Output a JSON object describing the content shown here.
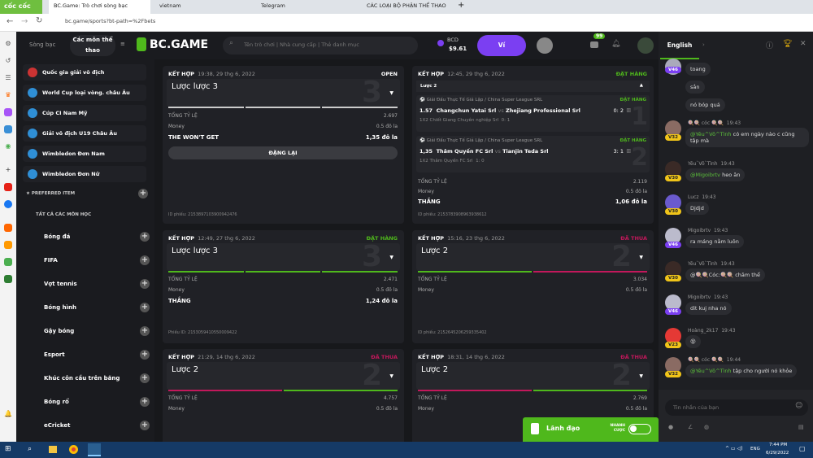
{
  "browser": {
    "brand": "cốc cốc",
    "tabs": [
      "BC.Game: Trò chơi sòng bạc",
      "vietnam",
      "Telegram",
      "CÁC LOẠI BỘ PHẬN THỂ THAO"
    ],
    "url": "bc.game/sports?bt-path=%2Fbets"
  },
  "header": {
    "casino": "Sòng bạc",
    "sports": "Các môn thể thao",
    "logo": "BC.GAME",
    "search_placeholder": "Tên trò chơi | Nhà cung cấp | Thẻ danh mục",
    "currency": "BCD",
    "balance": "$9.61",
    "wallet": "Ví",
    "mail_badge": "99"
  },
  "sidebar": {
    "leagues": [
      "Quốc gia giải vô địch",
      "World Cup loại vòng. châu Âu",
      "Cúp CI Nam Mỹ",
      "Giải vô địch U19 Châu Âu",
      "Wimbledon Đơn Nam",
      "Wimbledon Đơn Nữ"
    ],
    "preferred": "PREFERRED ITEM",
    "all": "TẤT CẢ CÁC MÔN HỌC",
    "sports": [
      "Bóng đá",
      "FIFA",
      "Vợt tennis",
      "Bóng hình",
      "Gậy bóng",
      "Esport",
      "Khúc côn cầu trên băng",
      "Bóng rổ",
      "eCricket"
    ]
  },
  "colors": {
    "green": "#4fb81c",
    "red": "#c2185b",
    "purple": "#7b3ff2"
  },
  "bets": [
    {
      "type": "KẾT HỢP",
      "time": "19:38, 29 thg 6, 2022",
      "status": "OPEN",
      "title": "Lược lược 3",
      "num": "3",
      "total_label": "TỔNG TỶ LỆ",
      "total": "2.697",
      "money_label": "Money",
      "money": "0.5 đô la",
      "result_label": "THE WON'T GET",
      "result": "1,35 đô la",
      "button": "ĐẶNG LẠI",
      "id": "ID phiếu: 2153897103900942476"
    },
    {
      "type": "KẾT HỢP",
      "time": "12:45, 29 thg 6, 2022",
      "status": "ĐẶT HÀNG",
      "title": "Lược 2",
      "total_label": "TỔNG TỶ LỆ",
      "total": "2.119",
      "money_label": "Money",
      "money": "0.5 đô la",
      "result_label": "THẮNG",
      "result": "1,06 đô la",
      "id": "ID phiếu: 2153783908963938612",
      "legs": [
        {
          "league": "Giải Đấu Thực Tế Giả Lập / China Super League SRL",
          "status": "ĐẶT HÀNG",
          "odds": "1.57",
          "home": "Changchun Yatai Srl",
          "away": "Zhejiang Professional Srl",
          "score": "0: 2",
          "pick": "1X2 Chiết Giang Chuyên nghiệp Srl",
          "pick_score": "0: 1",
          "num": "1"
        },
        {
          "league": "Giải Đấu Thực Tế Giả Lập / China Super League SRL",
          "status": "ĐẶT HÀNG",
          "odds": "1,35",
          "home": "Thâm Quyến FC Srl",
          "away": "Tianjin Teda Srl",
          "score": "3: 1",
          "pick": "1X2 Thâm Quyến FC Srl",
          "pick_score": "1: 0",
          "num": "2"
        }
      ]
    },
    {
      "type": "KẾT HỢP",
      "time": "12:49, 27 thg 6, 2022",
      "status": "ĐẶT HÀNG",
      "title": "Lược lược 3",
      "num": "3",
      "total_label": "TỔNG TỶ LỆ",
      "total": "2.471",
      "money_label": "Money",
      "money": "0.5 đô la",
      "result_label": "THẮNG",
      "result": "1,24 đô la",
      "id": "Phiếu ID: 2153059410550009422"
    },
    {
      "type": "KẾT HỢP",
      "time": "15:16, 23 thg 6, 2022",
      "status": "ĐÃ THUA",
      "title": "Lược 2",
      "num": "2",
      "total_label": "TỔNG TỶ LỆ",
      "total": "3.034",
      "money_label": "Money",
      "money": "0.5 đô la",
      "id": "ID phiếu: 2152645206259335402"
    },
    {
      "type": "KẾT HỢP",
      "time": "21:29, 14 thg 6, 2022",
      "status": "ĐÃ THUA",
      "title": "Lược 2",
      "num": "2",
      "total_label": "TỔNG TỶ LỆ",
      "total": "4.757",
      "money_label": "Money",
      "money": "0.5 đô la"
    },
    {
      "type": "KẾT HỢP",
      "time": "18:31, 14 thg 6, 2022",
      "status": "ĐÃ THUA",
      "title": "Lược 2",
      "num": "2",
      "total_label": "TỔNG TỶ LỆ",
      "total": "2.769",
      "money_label": "Money",
      "money": "0.5 đô la"
    }
  ],
  "leader": {
    "label": "Lãnh đạo",
    "quick": "NHANH CƯỢC"
  },
  "chat": {
    "lang": "English",
    "placeholder": "Tin nhắn của bạn",
    "messages": [
      {
        "text": "toang",
        "level": "V46"
      },
      {
        "text": "sắn"
      },
      {
        "text": "nó bóp quá"
      },
      {
        "user": "🍭🍭 cóc 🍭🍭",
        "time": "19:43",
        "level": "V32",
        "mention": "@Yêu^Vô^Tình",
        "text": "có em ngày nào c cũng tập mà"
      },
      {
        "user": "Yêu`Vô`Tình",
        "time": "19:43",
        "level": "V30",
        "mention": "@Migoibrtv",
        "text": "heo ăn"
      },
      {
        "user": "Lucz",
        "time": "19:43",
        "level": "V30",
        "text": "Djdjd"
      },
      {
        "user": "Migoibrtv",
        "time": "19:43",
        "level": "V46",
        "text": "ra máng nằm luôn"
      },
      {
        "user": "Yêu`Vô`Tình",
        "time": "19:43",
        "level": "V30",
        "text": "@🍭🍭Cóc:🍭🍭 chăm thể"
      },
      {
        "user": "Migoibrtv",
        "time": "19:43",
        "level": "V46",
        "text": "dit kuj nha nó"
      },
      {
        "user": "Hoàng_2k17",
        "time": "19:43",
        "level": "V23",
        "text": "😵"
      },
      {
        "user": "🍭🍭 cóc 🍭🍭",
        "time": "19:44",
        "level": "V32",
        "mention": "@Yêu^Vô^Tình",
        "text": "tập cho người nó khỏe"
      }
    ]
  },
  "taskbar": {
    "lang": "ENG",
    "time": "7:44 PM",
    "date": "6/29/2022"
  }
}
